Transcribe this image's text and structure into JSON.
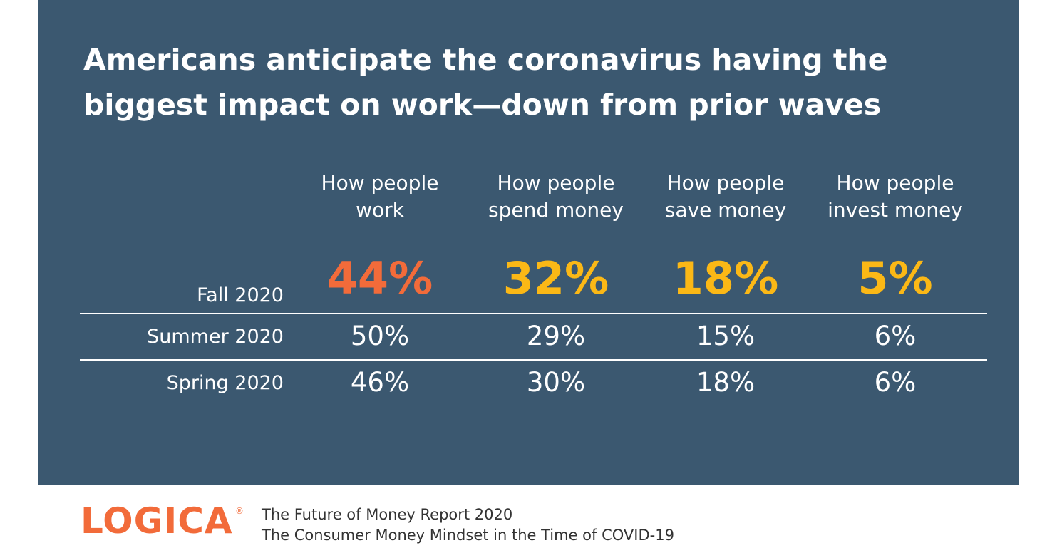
{
  "header": {
    "title": [
      "Americans anticipate the coronavirus having the",
      "biggest impact on work—down from prior waves"
    ]
  },
  "table": {
    "columns": [
      [
        "How people",
        "work"
      ],
      [
        "How people",
        "spend money"
      ],
      [
        "How people",
        "save money"
      ],
      [
        "How people",
        "invest money"
      ]
    ],
    "rows": [
      {
        "label": "Fall 2020",
        "cells": [
          "44%",
          "32%",
          "18%",
          "5%"
        ]
      },
      {
        "label": "Summer 2020",
        "cells": [
          "50%",
          "29%",
          "15%",
          "6%"
        ]
      },
      {
        "label": "Spring 2020",
        "cells": [
          "46%",
          "30%",
          "18%",
          "6%"
        ]
      }
    ]
  },
  "footer": {
    "logo": "LOGICA",
    "logo_mark": "®",
    "lines": [
      "The Future of Money Report 2020",
      "The Consumer Money Mindset in the Time of COVID-19"
    ]
  }
}
